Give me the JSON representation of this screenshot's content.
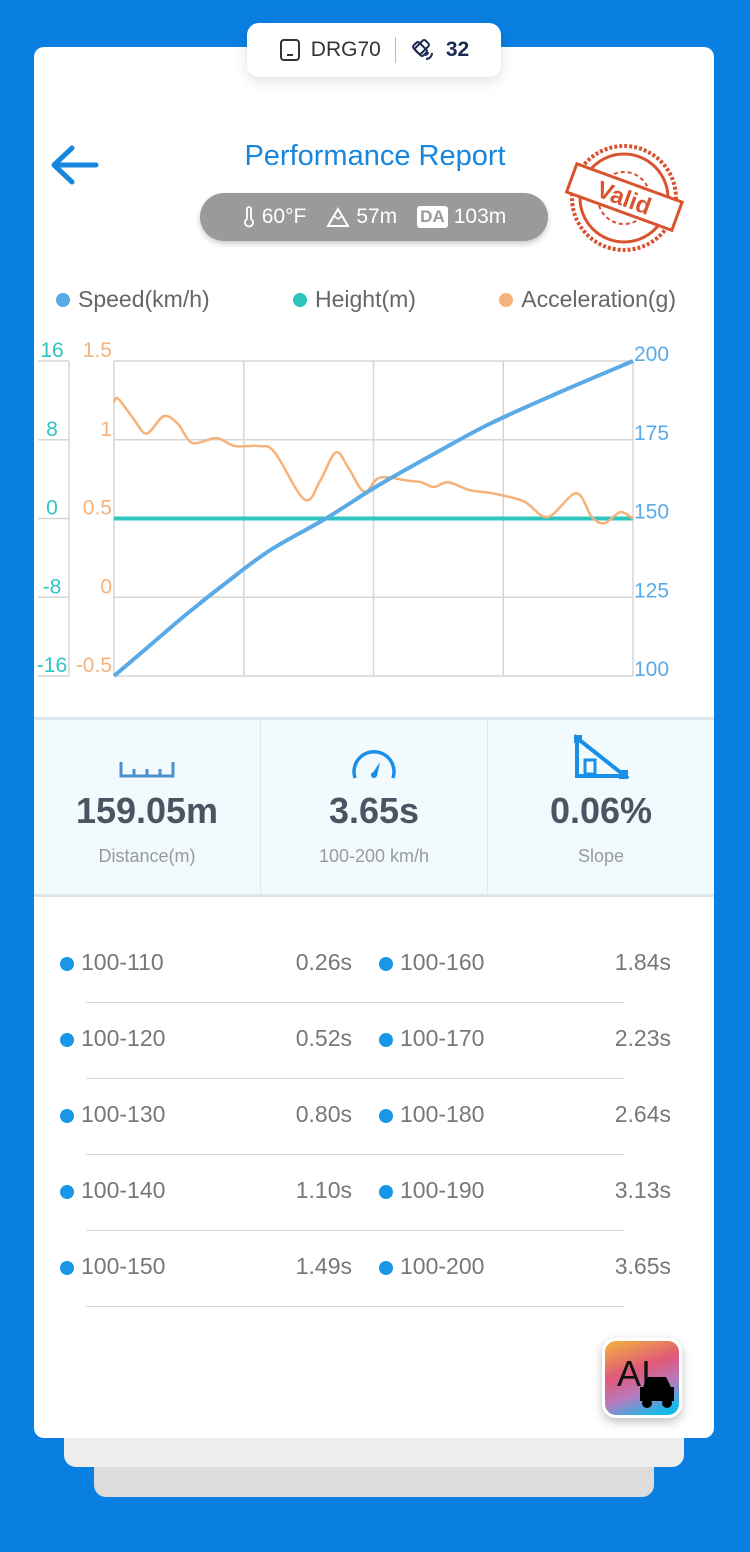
{
  "device": {
    "name": "DRG70",
    "satellites": "32",
    "device_icon": "phone-icon",
    "satellite_icon": "satellite-icon"
  },
  "header": {
    "title": "Performance Report",
    "stamp": "Valid"
  },
  "environment": {
    "temperature": "60°F",
    "altitude": "57m",
    "da_badge": "DA",
    "density_altitude": "103m"
  },
  "legend": [
    {
      "label": "Speed(km/h)",
      "color": "#5aaae6"
    },
    {
      "label": "Height(m)",
      "color": "#2ec4c0"
    },
    {
      "label": "Acceleration(g)",
      "color": "#f5b27a"
    }
  ],
  "chart_data": {
    "type": "line",
    "x_range": [
      0,
      3.65
    ],
    "grid": true,
    "axes": {
      "height": {
        "ticks": [
          "16",
          "8",
          "0",
          "-8",
          "-16"
        ],
        "range": [
          -16,
          16
        ],
        "color": "#2ec4c0"
      },
      "acceleration": {
        "ticks": [
          "1.5",
          "1",
          "0.5",
          "0",
          "-0.5"
        ],
        "range": [
          -0.5,
          1.5
        ],
        "color": "#f5b27a"
      },
      "speed": {
        "ticks": [
          "200",
          "175",
          "150",
          "125",
          "100"
        ],
        "range": [
          100,
          200
        ],
        "color": "#5aaae6"
      }
    },
    "series": [
      {
        "name": "Speed(km/h)",
        "axis": "speed",
        "color": "#5aaae6",
        "x": [
          0,
          0.26,
          0.52,
          0.8,
          1.1,
          1.49,
          1.84,
          2.23,
          2.64,
          3.13,
          3.65
        ],
        "y": [
          100,
          110,
          120,
          130,
          140,
          150,
          160,
          170,
          180,
          190,
          200
        ]
      },
      {
        "name": "Height(m)",
        "axis": "height",
        "color": "#2ec4c0",
        "x": [
          0,
          3.65
        ],
        "y": [
          0,
          0
        ]
      },
      {
        "name": "Acceleration(g)",
        "axis": "acceleration",
        "color": "#f5b27a",
        "x": [
          0,
          0.03,
          0.14,
          0.23,
          0.35,
          0.45,
          0.55,
          0.72,
          0.85,
          1.02,
          1.13,
          1.34,
          1.45,
          1.56,
          1.65,
          1.76,
          1.87,
          2.07,
          2.16,
          2.25,
          2.35,
          2.5,
          2.66,
          2.88,
          3.05,
          3.25,
          3.36,
          3.45,
          3.56,
          3.65
        ],
        "y": [
          1.24,
          1.26,
          1.13,
          1.04,
          1.15,
          1.1,
          0.98,
          1.01,
          0.96,
          0.96,
          0.92,
          0.62,
          0.74,
          0.92,
          0.82,
          0.67,
          0.76,
          0.74,
          0.73,
          0.7,
          0.73,
          0.68,
          0.66,
          0.61,
          0.51,
          0.66,
          0.51,
          0.47,
          0.54,
          0.5
        ]
      }
    ]
  },
  "stats": [
    {
      "icon": "ruler-icon",
      "value": "159.05m",
      "label": "Distance(m)"
    },
    {
      "icon": "speedometer-icon",
      "value": "3.65s",
      "label": "100-200 km/h"
    },
    {
      "icon": "slope-icon",
      "value": "0.06%",
      "label": "Slope"
    }
  ],
  "splits": [
    [
      {
        "range": "100-110",
        "time": "0.26s"
      },
      {
        "range": "100-160",
        "time": "1.84s"
      }
    ],
    [
      {
        "range": "100-120",
        "time": "0.52s"
      },
      {
        "range": "100-170",
        "time": "2.23s"
      }
    ],
    [
      {
        "range": "100-130",
        "time": "0.80s"
      },
      {
        "range": "100-180",
        "time": "2.64s"
      }
    ],
    [
      {
        "range": "100-140",
        "time": "1.10s"
      },
      {
        "range": "100-190",
        "time": "3.13s"
      }
    ],
    [
      {
        "range": "100-150",
        "time": "1.49s"
      },
      {
        "range": "100-200",
        "time": "3.65s"
      }
    ]
  ],
  "ai_button": {
    "label": "AI"
  }
}
